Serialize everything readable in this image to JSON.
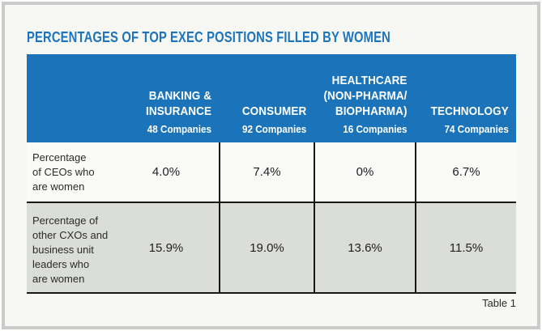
{
  "title": "PERCENTAGES OF TOP EXEC POSITIONS FILLED BY WOMEN",
  "caption": "Table 1",
  "colors": {
    "header_blue": "#1b74ba",
    "title_blue": "#1c75bc",
    "row_white": "#fafbf9",
    "row_gray": "#dbddd8",
    "rule_black": "#1a1818",
    "frame_gray": "#c9ccca",
    "page_bg": "#f7f7f4"
  },
  "table": {
    "columns": [
      {
        "name": "BANKING &\nINSURANCE",
        "companies": "48 Companies"
      },
      {
        "name": "CONSUMER",
        "companies": "92 Companies"
      },
      {
        "name": "HEALTHCARE\n(NON-PHARMA/\nBIOPHARMA)",
        "companies": "16 Companies"
      },
      {
        "name": "TECHNOLOGY",
        "companies": "74 Companies"
      }
    ],
    "rows": [
      {
        "label": "Percentage\nof CEOs who\nare women",
        "values": [
          "4.0%",
          "7.4%",
          "0%",
          "6.7%"
        ]
      },
      {
        "label": "Percentage of\nother CXOs and\nbusiness unit\nleaders who\nare women",
        "values": [
          "15.9%",
          "19.0%",
          "13.6%",
          "11.5%"
        ]
      }
    ]
  }
}
